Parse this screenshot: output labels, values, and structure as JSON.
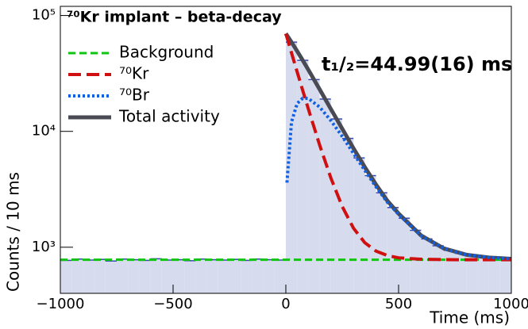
{
  "chart_data": {
    "type": "line",
    "title": "⁷⁰Kr implant – beta-decay",
    "annotation": "t₁/₂=44.99(16) ms",
    "x_label": "Time (ms)",
    "y_label": "Counts / 10 ms",
    "ylog": true,
    "legend": "top-left",
    "xlim": [
      -1000,
      1000
    ],
    "ylim": [
      400,
      120000
    ],
    "xticks": [
      {
        "value": -1000,
        "label": "−1000"
      },
      {
        "value": -500,
        "label": "−500"
      },
      0,
      500,
      1000
    ],
    "yticks": [
      {
        "value": 1000,
        "label": "10³"
      },
      {
        "value": 10000,
        "label": "10⁴"
      },
      {
        "value": 100000,
        "label": "10⁵"
      }
    ],
    "x": [
      -1000,
      0,
      5,
      25,
      50,
      75,
      100,
      150,
      200,
      250,
      300,
      350,
      400,
      450,
      500,
      600,
      700,
      800,
      900,
      1000
    ],
    "series": [
      {
        "name": "Background",
        "color": "#11c411",
        "dash": "9,5",
        "width": 3,
        "values": [
          780,
          780,
          780,
          780,
          780,
          780,
          780,
          780,
          780,
          780,
          780,
          780,
          780,
          780,
          780,
          780,
          780,
          780,
          780,
          780
        ]
      },
      {
        "name": "⁷⁰Kr",
        "color": "#d01010",
        "dash": "16,7",
        "width": 4,
        "values": [
          null,
          69780,
          64670,
          47700,
          32700,
          22500,
          15560,
          7620,
          3950,
          2250,
          1460,
          1095,
          926,
          848,
          810,
          787,
          781,
          780,
          780,
          780
        ]
      },
      {
        "name": "⁷⁰Br",
        "color": "#1060e0",
        "dash": "3,3",
        "width": 4,
        "values": [
          null,
          null,
          3610,
          12010,
          17400,
          19310,
          19220,
          16210,
          12380,
          9060,
          6460,
          4610,
          3320,
          2450,
          1920,
          1255,
          977,
          862,
          814,
          794
        ]
      },
      {
        "name": "Total activity",
        "color": "#4a4a55",
        "dash": "",
        "width": 5,
        "values": [
          null,
          69780,
          67500,
          58930,
          49350,
          41050,
          33990,
          23050,
          15550,
          10530,
          7140,
          4925,
          3466,
          2518,
          1951,
          1262,
          978,
          862,
          814,
          794
        ]
      }
    ],
    "histogram": {
      "color": "#d6dcee",
      "edge": "#3a48b0",
      "bins": [
        -1000,
        -950,
        -900,
        -850,
        -800,
        -750,
        -700,
        -650,
        -600,
        -550,
        -500,
        -450,
        -400,
        -350,
        -300,
        -250,
        -200,
        -150,
        -100,
        -50,
        0,
        50,
        100,
        150,
        200,
        250,
        300,
        350,
        400,
        450,
        500,
        550,
        600,
        650,
        700,
        750,
        800,
        850,
        900,
        950,
        1000
      ],
      "counts": [
        770,
        790,
        775,
        785,
        760,
        790,
        780,
        770,
        795,
        775,
        780,
        765,
        790,
        780,
        775,
        785,
        770,
        790,
        780,
        775,
        58930,
        41050,
        28000,
        19000,
        12800,
        8700,
        5900,
        4150,
        2950,
        2200,
        1780,
        1400,
        1180,
        1030,
        940,
        885,
        850,
        825,
        808,
        800
      ]
    }
  }
}
